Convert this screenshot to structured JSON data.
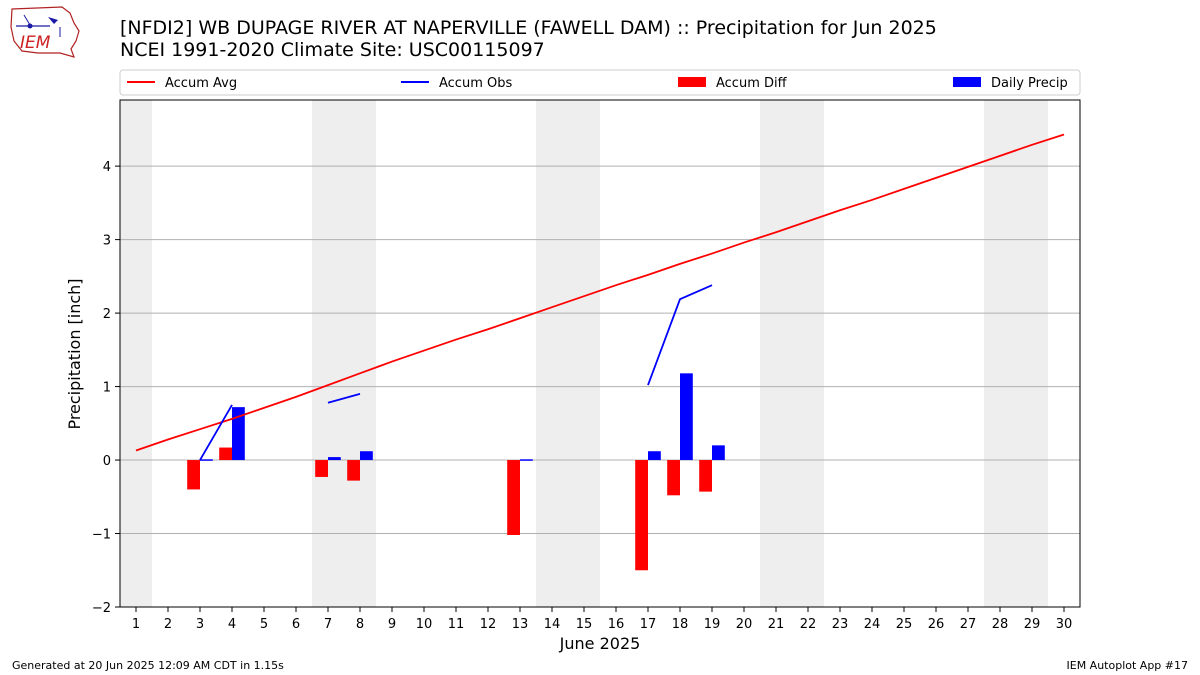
{
  "logo": {
    "text": "IEM"
  },
  "header": {
    "title_line1": "[NFDI2] WB DUPAGE RIVER AT NAPERVILLE (FAWELL DAM) :: Precipitation for Jun 2025",
    "title_line2": "NCEI 1991-2020 Climate Site: USC00115097"
  },
  "footer": {
    "generated": "Generated at 20 Jun 2025 12:09 AM CDT in 1.15s",
    "app": "IEM Autoplot App #17"
  },
  "colors": {
    "accum_avg": "#ff0000",
    "accum_obs": "#0000ff",
    "accum_diff": "#ff0000",
    "daily_precip": "#0000ff",
    "weekend_shade": "#eeeeee",
    "grid": "#b0b0b0"
  },
  "chart_data": {
    "type": "bar",
    "xlabel": "June 2025",
    "ylabel": "Precipitation [inch]",
    "ylim": [
      -2,
      4.9
    ],
    "yticks": [
      -2,
      -1,
      0,
      1,
      2,
      3,
      4
    ],
    "ytick_labels": [
      "−2",
      "−1",
      "0",
      "1",
      "2",
      "3",
      "4"
    ],
    "xlim": [
      0.5,
      30.5
    ],
    "days": [
      1,
      2,
      3,
      4,
      5,
      6,
      7,
      8,
      9,
      10,
      11,
      12,
      13,
      14,
      15,
      16,
      17,
      18,
      19,
      20,
      21,
      22,
      23,
      24,
      25,
      26,
      27,
      28,
      29,
      30
    ],
    "grid": "horizontal",
    "legend_placement": "top",
    "legend": [
      "Accum Avg",
      "Accum Obs",
      "Accum Diff",
      "Daily Precip"
    ],
    "weekend_days": [
      1,
      7,
      8,
      14,
      15,
      21,
      22,
      28,
      29
    ],
    "series": [
      {
        "name": "Accum Avg",
        "type": "line",
        "x": [
          1,
          2,
          3,
          4,
          5,
          6,
          7,
          8,
          9,
          10,
          11,
          12,
          13,
          14,
          15,
          16,
          17,
          18,
          19,
          20,
          21,
          22,
          23,
          24,
          25,
          26,
          27,
          28,
          29,
          30
        ],
        "values": [
          0.13,
          0.28,
          0.42,
          0.56,
          0.71,
          0.86,
          1.02,
          1.18,
          1.34,
          1.49,
          1.64,
          1.78,
          1.93,
          2.08,
          2.23,
          2.38,
          2.52,
          2.67,
          2.81,
          2.96,
          3.1,
          3.25,
          3.4,
          3.54,
          3.69,
          3.84,
          3.99,
          4.14,
          4.29,
          4.43
        ]
      },
      {
        "name": "Accum Obs",
        "type": "line",
        "segments": [
          {
            "x": [
              3,
              4
            ],
            "values": [
              0.0,
              0.75
            ]
          },
          {
            "x": [
              7,
              8
            ],
            "values": [
              0.78,
              0.9
            ]
          },
          {
            "x": [
              17,
              18,
              19
            ],
            "values": [
              1.02,
              2.19,
              2.38
            ]
          }
        ]
      },
      {
        "name": "Accum Diff",
        "type": "bar",
        "x": [
          3,
          4,
          7,
          8,
          13,
          17,
          18,
          19
        ],
        "values": [
          -0.4,
          0.17,
          -0.23,
          -0.28,
          -1.02,
          -1.5,
          -0.48,
          -0.43
        ]
      },
      {
        "name": "Daily Precip",
        "type": "bar",
        "x": [
          3,
          4,
          7,
          8,
          13,
          17,
          18,
          19
        ],
        "values": [
          0.01,
          0.72,
          0.04,
          0.12,
          0.01,
          0.12,
          1.18,
          0.2
        ]
      }
    ]
  }
}
